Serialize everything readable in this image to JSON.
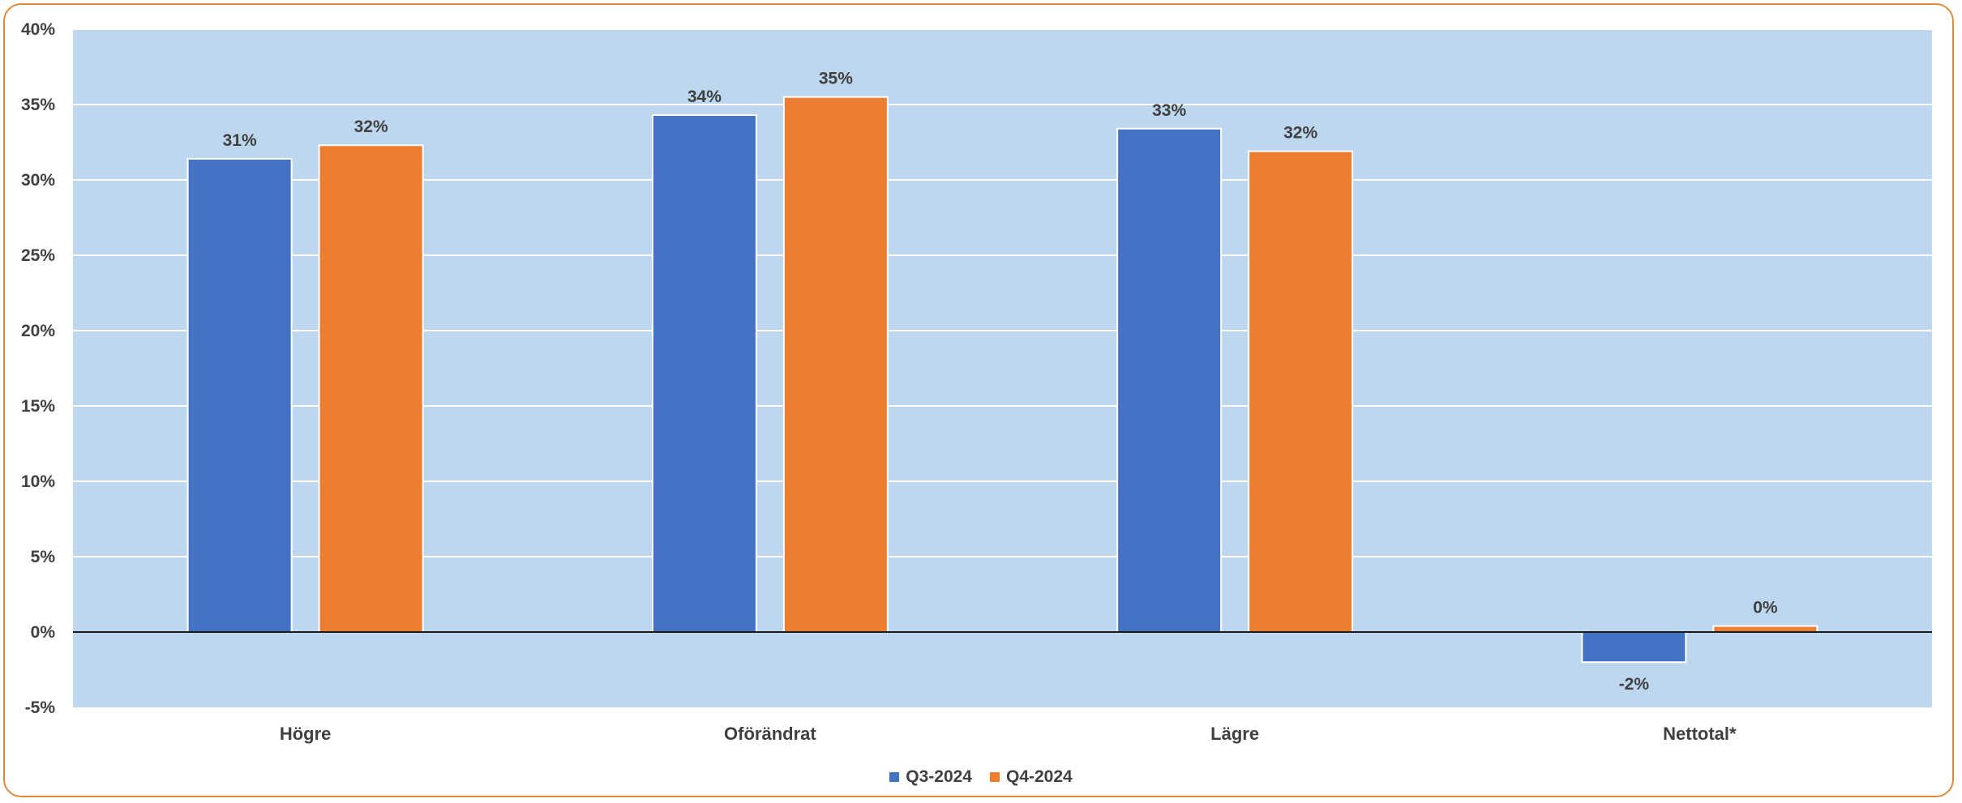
{
  "chart_data": {
    "type": "bar",
    "categories": [
      "Högre",
      "Oförändrat",
      "Lägre",
      "Nettotal*"
    ],
    "series": [
      {
        "name": "Q3-2024",
        "color": "#4472c4",
        "values": [
          31.4,
          34.3,
          33.4,
          -2.0
        ],
        "labels": [
          "31%",
          "34%",
          "33%",
          "-2%"
        ]
      },
      {
        "name": "Q4-2024",
        "color": "#ed7d31",
        "values": [
          32.3,
          35.5,
          31.9,
          0.4
        ],
        "labels": [
          "32%",
          "35%",
          "32%",
          "0%"
        ]
      }
    ],
    "ylim": [
      -5,
      40
    ],
    "yticks": [
      -5,
      0,
      5,
      10,
      15,
      20,
      25,
      30,
      35,
      40
    ],
    "ytick_labels": [
      "-5%",
      "0%",
      "5%",
      "10%",
      "15%",
      "20%",
      "25%",
      "30%",
      "35%",
      "40%"
    ],
    "grid": true,
    "legend_position": "bottom",
    "plot_background": "#bdd7ee",
    "border_color": "#e08a3a"
  }
}
